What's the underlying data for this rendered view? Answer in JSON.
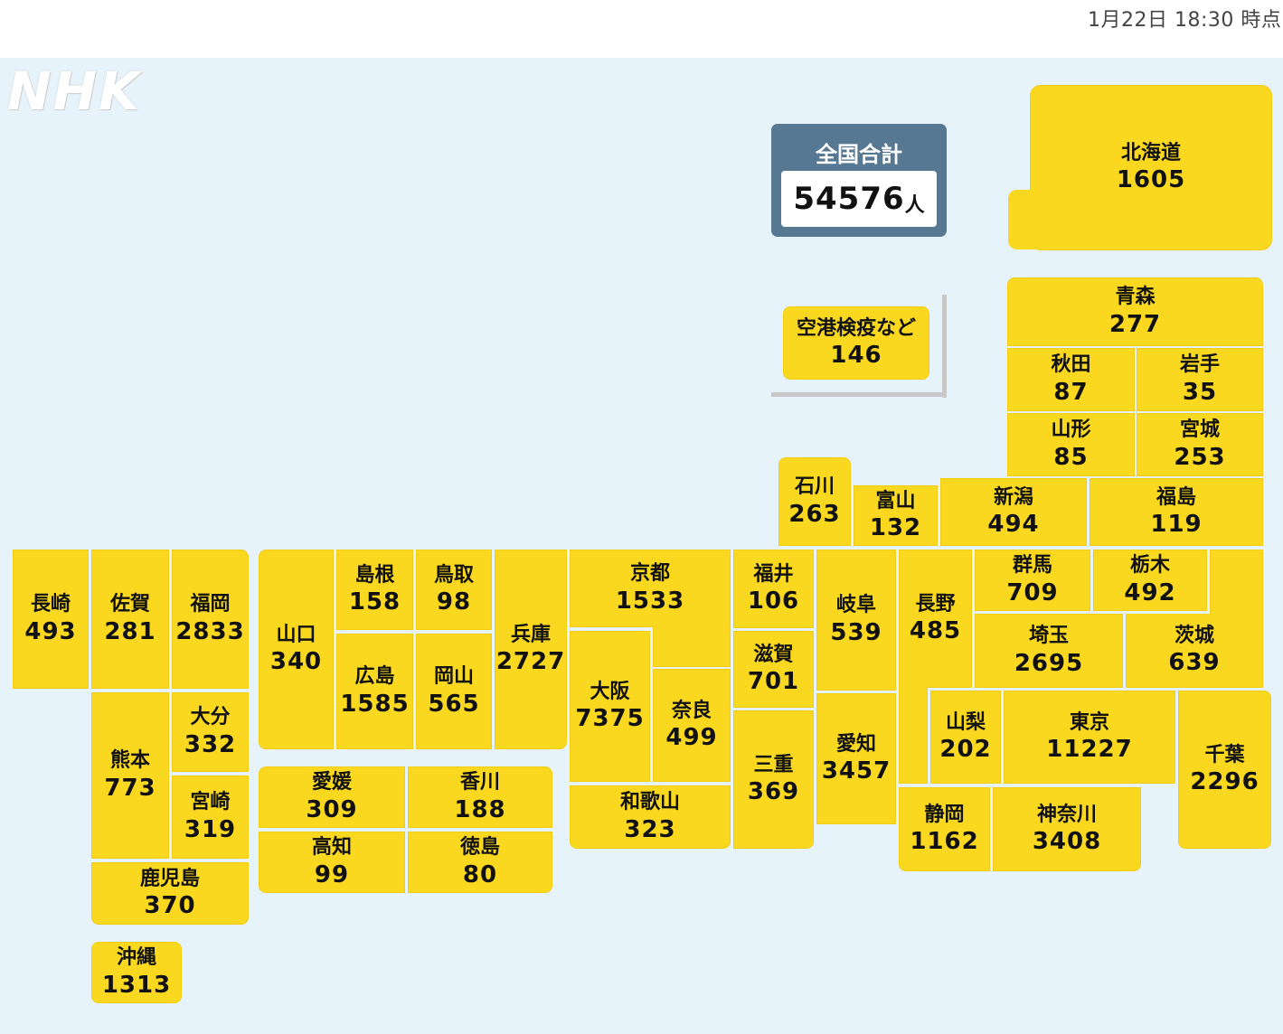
{
  "timestamp": "1月22日 18:30 時点",
  "logo": "NHK",
  "total": {
    "label": "全国合計",
    "value": "54576",
    "unit": "人"
  },
  "prefectures": {
    "hokkaido": {
      "name": "北海道",
      "value": "1605"
    },
    "aomori": {
      "name": "青森",
      "value": "277"
    },
    "akita": {
      "name": "秋田",
      "value": "87"
    },
    "iwate": {
      "name": "岩手",
      "value": "35"
    },
    "yamagata": {
      "name": "山形",
      "value": "85"
    },
    "miyagi": {
      "name": "宮城",
      "value": "253"
    },
    "airport": {
      "name": "空港検疫など",
      "value": "146"
    },
    "ishikawa": {
      "name": "石川",
      "value": "263"
    },
    "toyama": {
      "name": "富山",
      "value": "132"
    },
    "niigata": {
      "name": "新潟",
      "value": "494"
    },
    "fukushima": {
      "name": "福島",
      "value": "119"
    },
    "nagasaki": {
      "name": "長崎",
      "value": "493"
    },
    "saga": {
      "name": "佐賀",
      "value": "281"
    },
    "fukuoka": {
      "name": "福岡",
      "value": "2833"
    },
    "yamaguchi": {
      "name": "山口",
      "value": "340"
    },
    "shimane": {
      "name": "島根",
      "value": "158"
    },
    "tottori": {
      "name": "鳥取",
      "value": "98"
    },
    "hyogo": {
      "name": "兵庫",
      "value": "2727"
    },
    "kyoto": {
      "name": "京都",
      "value": "1533"
    },
    "fukui": {
      "name": "福井",
      "value": "106"
    },
    "gifu": {
      "name": "岐阜",
      "value": "539"
    },
    "nagano": {
      "name": "長野",
      "value": "485"
    },
    "gunma": {
      "name": "群馬",
      "value": "709"
    },
    "tochigi": {
      "name": "栃木",
      "value": "492"
    },
    "hiroshima": {
      "name": "広島",
      "value": "1585"
    },
    "okayama": {
      "name": "岡山",
      "value": "565"
    },
    "osaka": {
      "name": "大阪",
      "value": "7375"
    },
    "nara": {
      "name": "奈良",
      "value": "499"
    },
    "shiga": {
      "name": "滋賀",
      "value": "701"
    },
    "saitama": {
      "name": "埼玉",
      "value": "2695"
    },
    "ibaraki": {
      "name": "茨城",
      "value": "639"
    },
    "kumamoto": {
      "name": "熊本",
      "value": "773"
    },
    "oita": {
      "name": "大分",
      "value": "332"
    },
    "miyazaki": {
      "name": "宮崎",
      "value": "319"
    },
    "kagoshima": {
      "name": "鹿児島",
      "value": "370"
    },
    "okinawa": {
      "name": "沖縄",
      "value": "1313"
    },
    "ehime": {
      "name": "愛媛",
      "value": "309"
    },
    "kagawa": {
      "name": "香川",
      "value": "188"
    },
    "kochi": {
      "name": "高知",
      "value": "99"
    },
    "tokushima": {
      "name": "徳島",
      "value": "80"
    },
    "wakayama": {
      "name": "和歌山",
      "value": "323"
    },
    "mie": {
      "name": "三重",
      "value": "369"
    },
    "aichi": {
      "name": "愛知",
      "value": "3457"
    },
    "yamanashi": {
      "name": "山梨",
      "value": "202"
    },
    "tokyo": {
      "name": "東京",
      "value": "11227"
    },
    "chiba": {
      "name": "千葉",
      "value": "2296"
    },
    "shizuoka": {
      "name": "静岡",
      "value": "1162"
    },
    "kanagawa": {
      "name": "神奈川",
      "value": "3408"
    }
  }
}
